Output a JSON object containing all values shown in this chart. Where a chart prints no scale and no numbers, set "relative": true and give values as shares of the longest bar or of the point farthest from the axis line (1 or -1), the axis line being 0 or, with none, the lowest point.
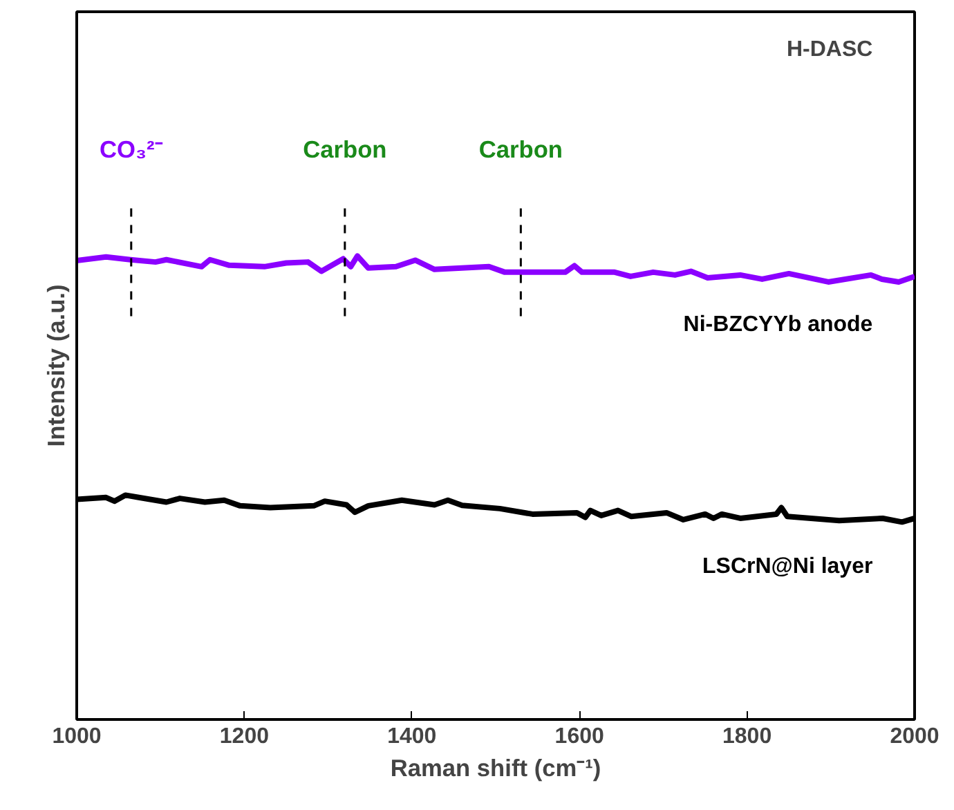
{
  "chart_data": {
    "type": "line",
    "relative": true,
    "xlabel": "Raman shift (cm⁻¹)",
    "ylabel": "Intensity (a.u.)",
    "xlim": [
      1000,
      2000
    ],
    "xticks": [
      1000,
      1200,
      1400,
      1600,
      1800,
      2000
    ],
    "grid": false,
    "line_style": "solid",
    "series": [
      {
        "name": "Ni-BZCYYb anode",
        "color": "#8b00ff",
        "x": [
          1000,
          1035,
          1064,
          1094,
          1107,
          1149,
          1159,
          1182,
          1224,
          1250,
          1276,
          1292,
          1318,
          1327,
          1335,
          1348,
          1381,
          1404,
          1427,
          1492,
          1511,
          1557,
          1583,
          1594,
          1603,
          1642,
          1661,
          1688,
          1714,
          1733,
          1753,
          1792,
          1818,
          1850,
          1897,
          1948,
          1961,
          1981,
          2000
        ],
        "values": [
          0.99,
          0.998,
          0.992,
          0.987,
          0.992,
          0.977,
          0.992,
          0.98,
          0.977,
          0.985,
          0.987,
          0.967,
          0.994,
          0.977,
          1.0,
          0.974,
          0.977,
          0.991,
          0.971,
          0.977,
          0.965,
          0.965,
          0.965,
          0.979,
          0.965,
          0.965,
          0.956,
          0.965,
          0.959,
          0.967,
          0.953,
          0.959,
          0.95,
          0.962,
          0.944,
          0.959,
          0.95,
          0.944,
          0.956
        ]
      },
      {
        "name": "LSCrN@Ni layer",
        "color": "#000000",
        "x": [
          1000,
          1035,
          1045,
          1058,
          1074,
          1107,
          1123,
          1153,
          1176,
          1195,
          1231,
          1283,
          1296,
          1322,
          1332,
          1348,
          1388,
          1427,
          1443,
          1460,
          1505,
          1544,
          1597,
          1607,
          1613,
          1626,
          1646,
          1662,
          1704,
          1724,
          1750,
          1760,
          1770,
          1792,
          1835,
          1841,
          1848,
          1910,
          1962,
          1985,
          2000
        ],
        "values": [
          0.475,
          0.479,
          0.471,
          0.484,
          0.479,
          0.469,
          0.477,
          0.469,
          0.473,
          0.461,
          0.457,
          0.461,
          0.471,
          0.463,
          0.447,
          0.461,
          0.473,
          0.463,
          0.473,
          0.462,
          0.455,
          0.443,
          0.446,
          0.436,
          0.451,
          0.44,
          0.451,
          0.438,
          0.446,
          0.431,
          0.443,
          0.434,
          0.443,
          0.434,
          0.443,
          0.457,
          0.438,
          0.429,
          0.434,
          0.426,
          0.434
        ]
      }
    ],
    "ref_lines": [
      {
        "axis": "x",
        "value": 1065,
        "label": "CO₃²⁻",
        "color": "#000000",
        "line_style": "dashed"
      },
      {
        "axis": "x",
        "value": 1320,
        "label": "Carbon",
        "color": "#000000",
        "line_style": "dashed"
      },
      {
        "axis": "x",
        "value": 1530,
        "label": "Carbon",
        "color": "#000000",
        "line_style": "dashed"
      }
    ],
    "annotations": [
      "H-DASC"
    ]
  }
}
